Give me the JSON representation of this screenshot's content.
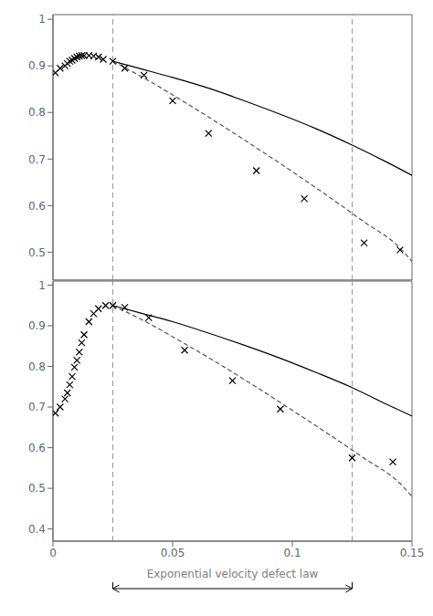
{
  "chart_data": [
    {
      "type": "line",
      "tick_labels": "y",
      "grid": false,
      "xlim": [
        0,
        0.15
      ],
      "xticks": [
        0,
        0.05,
        0.1,
        0.15
      ],
      "ylim": [
        0.44,
        1.01
      ],
      "yticks": [
        0.5,
        0.6,
        0.7,
        0.8,
        0.9,
        1
      ],
      "series": [
        {
          "type": "scatter",
          "marker": "x",
          "color": "#000000",
          "x": [
            0.001,
            0.003,
            0.005,
            0.006,
            0.007,
            0.008,
            0.009,
            0.01,
            0.011,
            0.012,
            0.013,
            0.015,
            0.017,
            0.019,
            0.021,
            0.025,
            0.03,
            0.038,
            0.05,
            0.065,
            0.085,
            0.105,
            0.13,
            0.145
          ],
          "values": [
            0.885,
            0.895,
            0.9,
            0.905,
            0.91,
            0.912,
            0.916,
            0.919,
            0.921,
            0.922,
            0.922,
            0.922,
            0.921,
            0.919,
            0.914,
            0.91,
            0.895,
            0.88,
            0.825,
            0.755,
            0.675,
            0.615,
            0.52,
            0.505
          ]
        },
        {
          "type": "line",
          "line_style": "solid",
          "color": "#000000",
          "x": [
            0.025,
            0.035,
            0.05,
            0.065,
            0.08,
            0.095,
            0.11,
            0.125,
            0.14,
            0.15
          ],
          "values": [
            0.91,
            0.896,
            0.875,
            0.852,
            0.825,
            0.796,
            0.765,
            0.73,
            0.692,
            0.665
          ]
        },
        {
          "type": "line",
          "line_style": "dashed",
          "color": "#555555",
          "x": [
            0.025,
            0.04,
            0.055,
            0.07,
            0.085,
            0.1,
            0.115,
            0.13,
            0.145,
            0.15
          ],
          "values": [
            0.91,
            0.868,
            0.822,
            0.774,
            0.724,
            0.673,
            0.62,
            0.565,
            0.509,
            0.48
          ]
        }
      ],
      "vlines": {
        "x": [
          0.025,
          0.125
        ],
        "color": "#999999",
        "line_style": "dashed"
      }
    },
    {
      "type": "line",
      "tick_labels": true,
      "grid": false,
      "x_label": "Exponential velocity defect law",
      "xlim": [
        0,
        0.15
      ],
      "xticks": [
        0,
        0.05,
        0.1,
        0.15
      ],
      "ylim": [
        0.37,
        1.01
      ],
      "yticks": [
        0.4,
        0.5,
        0.6,
        0.7,
        0.8,
        0.9,
        1
      ],
      "series": [
        {
          "type": "scatter",
          "marker": "x",
          "color": "#000000",
          "x": [
            0.001,
            0.003,
            0.005,
            0.006,
            0.007,
            0.008,
            0.009,
            0.01,
            0.011,
            0.012,
            0.013,
            0.015,
            0.017,
            0.019,
            0.022,
            0.025,
            0.03,
            0.04,
            0.055,
            0.075,
            0.095,
            0.125,
            0.142
          ],
          "values": [
            0.685,
            0.7,
            0.72,
            0.735,
            0.755,
            0.775,
            0.798,
            0.815,
            0.835,
            0.858,
            0.878,
            0.91,
            0.93,
            0.942,
            0.95,
            0.95,
            0.945,
            0.92,
            0.84,
            0.765,
            0.695,
            0.575,
            0.565
          ]
        },
        {
          "type": "line",
          "line_style": "solid",
          "color": "#000000",
          "x": [
            0.025,
            0.035,
            0.05,
            0.065,
            0.08,
            0.095,
            0.11,
            0.125,
            0.14,
            0.15
          ],
          "values": [
            0.95,
            0.934,
            0.91,
            0.882,
            0.852,
            0.82,
            0.785,
            0.748,
            0.705,
            0.678
          ]
        },
        {
          "type": "line",
          "line_style": "dashed",
          "color": "#555555",
          "x": [
            0.025,
            0.04,
            0.055,
            0.07,
            0.085,
            0.1,
            0.115,
            0.13,
            0.145,
            0.15
          ],
          "values": [
            0.95,
            0.906,
            0.856,
            0.804,
            0.749,
            0.692,
            0.634,
            0.574,
            0.512,
            0.48
          ]
        }
      ],
      "vlines": {
        "x": [
          0.025,
          0.125
        ],
        "color": "#999999",
        "line_style": "dashed"
      },
      "arrow": {
        "x": [
          0.025,
          0.125
        ]
      }
    }
  ]
}
